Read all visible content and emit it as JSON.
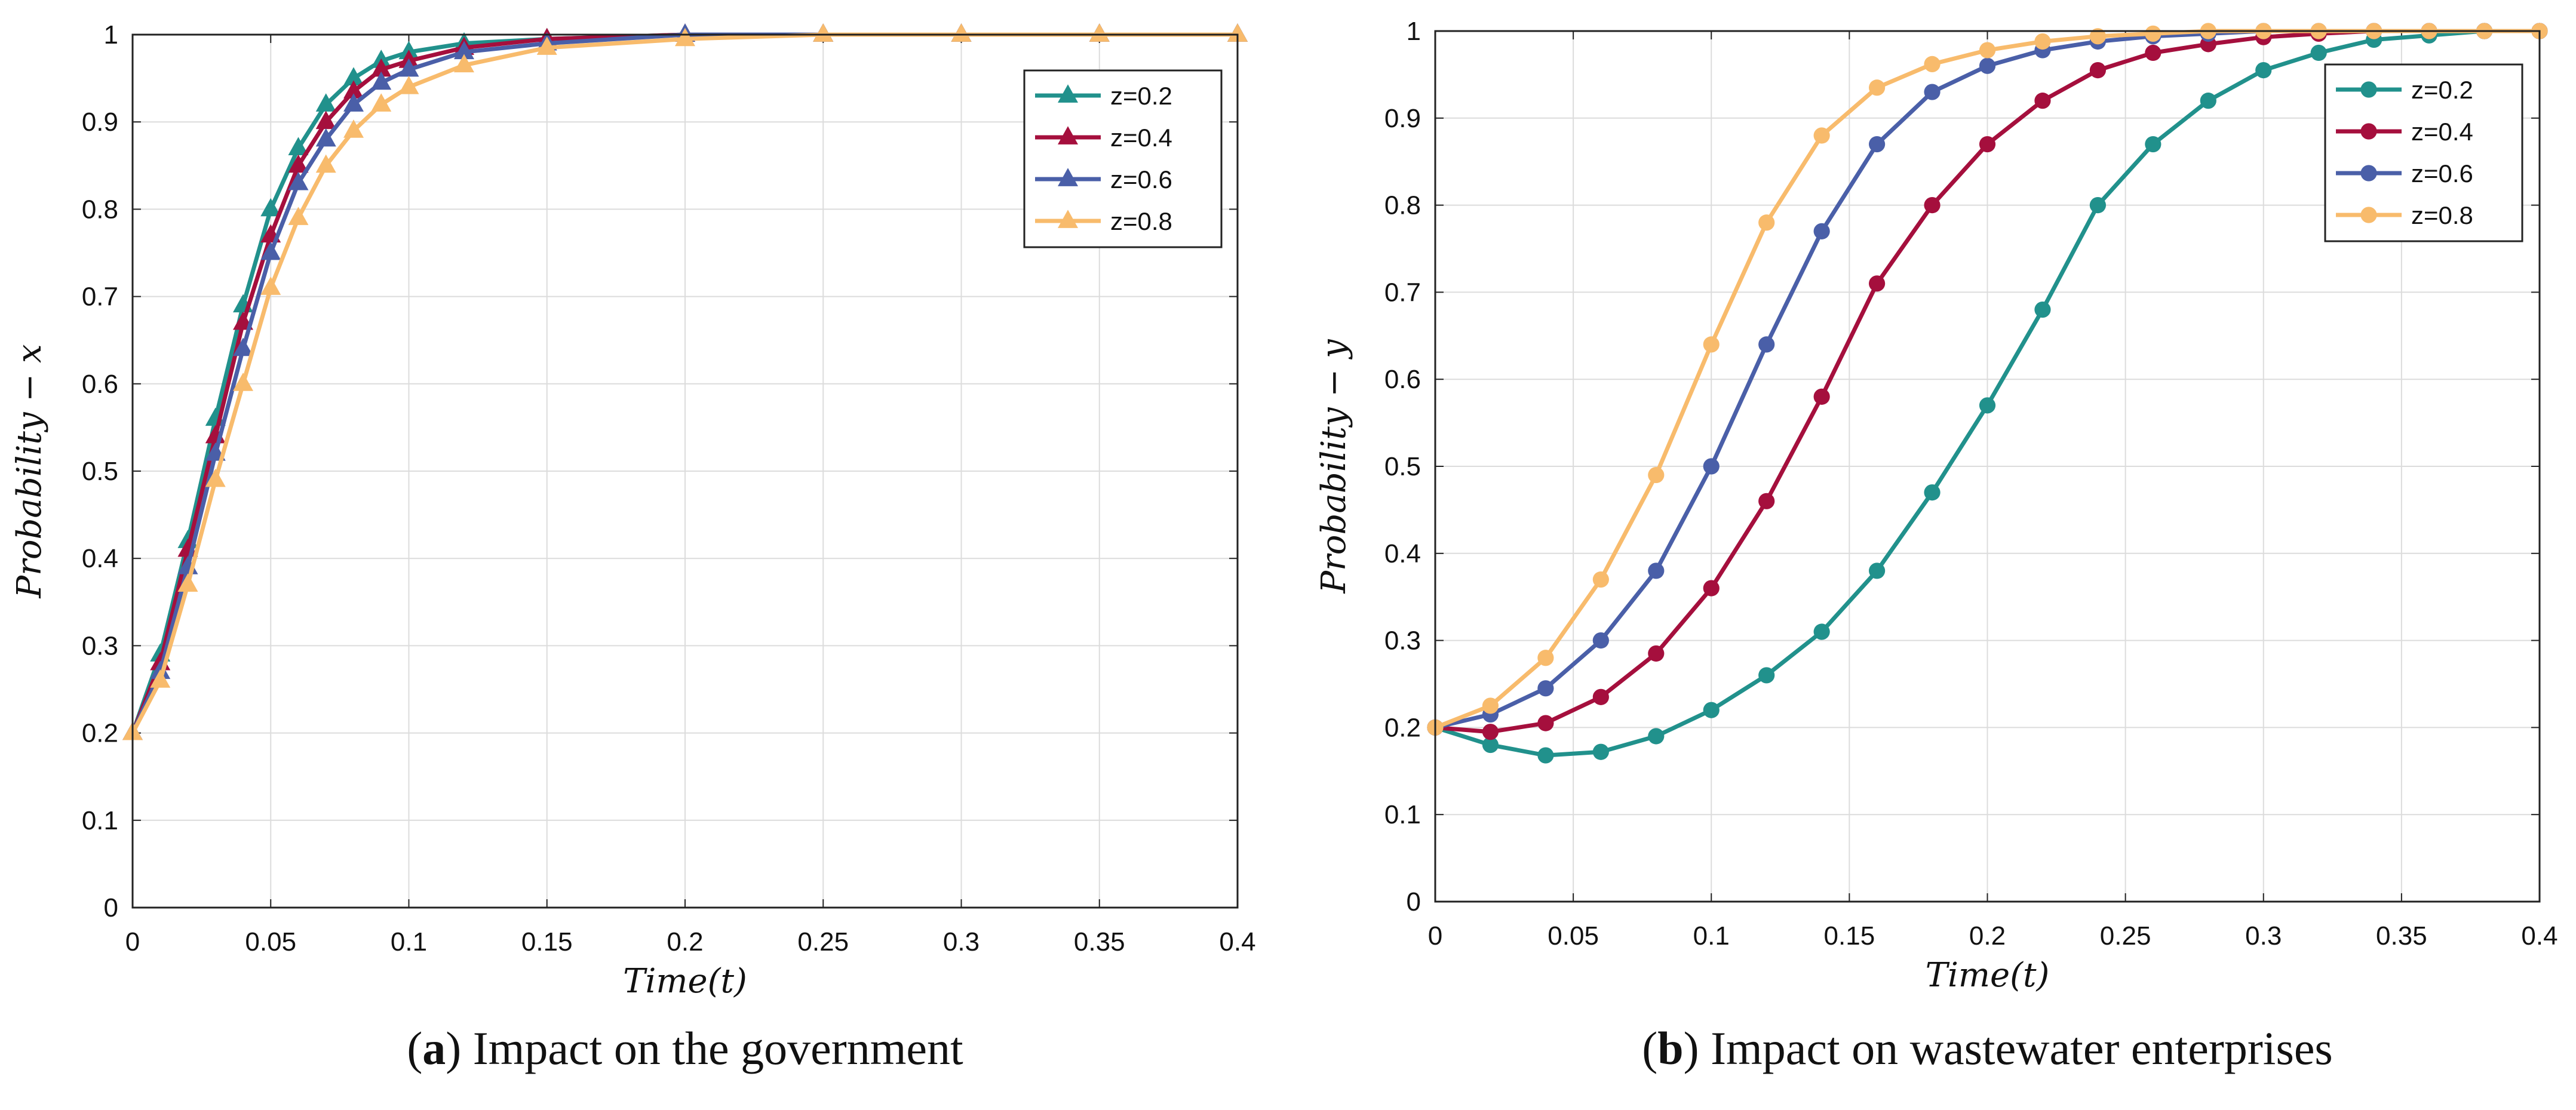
{
  "chart_data": [
    {
      "type": "line",
      "caption": {
        "tag": "a",
        "text": "Impact on the government"
      },
      "xlabel": "Time(t)",
      "ylabel": "Probability − x",
      "xlim": [
        0,
        0.4
      ],
      "ylim": [
        0,
        1
      ],
      "grid": true,
      "legend_position": "top-right",
      "marker": "triangle",
      "x_ticks": [
        0,
        0.05,
        0.1,
        0.15,
        0.2,
        0.25,
        0.3,
        0.35,
        0.4
      ],
      "x_tick_labels": [
        "0",
        "0.05",
        "0.1",
        "0.15",
        "0.2",
        "0.25",
        "0.3",
        "0.35",
        "0.4"
      ],
      "y_ticks": [
        0,
        0.1,
        0.2,
        0.3,
        0.4,
        0.5,
        0.6,
        0.7,
        0.8,
        0.9,
        1
      ],
      "y_tick_labels": [
        "0",
        "0.1",
        "0.2",
        "0.3",
        "0.4",
        "0.5",
        "0.6",
        "0.7",
        "0.8",
        "0.9",
        "1"
      ],
      "series": [
        {
          "name": "z=0.2",
          "color": "#21918c",
          "x": [
            0,
            0.01,
            0.02,
            0.03,
            0.04,
            0.05,
            0.06,
            0.07,
            0.08,
            0.09,
            0.1,
            0.12,
            0.15,
            0.2,
            0.25,
            0.3,
            0.35,
            0.4
          ],
          "y": [
            0.2,
            0.29,
            0.42,
            0.56,
            0.69,
            0.8,
            0.87,
            0.92,
            0.95,
            0.97,
            0.98,
            0.99,
            0.995,
            1,
            1,
            1,
            1,
            1
          ]
        },
        {
          "name": "z=0.4",
          "color": "#a50f3d",
          "x": [
            0,
            0.01,
            0.02,
            0.03,
            0.04,
            0.05,
            0.06,
            0.07,
            0.08,
            0.09,
            0.1,
            0.12,
            0.15,
            0.2,
            0.25,
            0.3,
            0.35,
            0.4
          ],
          "y": [
            0.2,
            0.28,
            0.41,
            0.54,
            0.67,
            0.77,
            0.85,
            0.9,
            0.935,
            0.96,
            0.97,
            0.985,
            0.995,
            1,
            1,
            1,
            1,
            1
          ]
        },
        {
          "name": "z=0.6",
          "color": "#4a5fa8",
          "x": [
            0,
            0.01,
            0.02,
            0.03,
            0.04,
            0.05,
            0.06,
            0.07,
            0.08,
            0.09,
            0.1,
            0.12,
            0.15,
            0.2,
            0.25,
            0.3,
            0.35,
            0.4
          ],
          "y": [
            0.2,
            0.27,
            0.39,
            0.52,
            0.64,
            0.75,
            0.83,
            0.88,
            0.92,
            0.945,
            0.96,
            0.98,
            0.99,
            1,
            1,
            1,
            1,
            1
          ]
        },
        {
          "name": "z=0.8",
          "color": "#f8bb6c",
          "x": [
            0,
            0.01,
            0.02,
            0.03,
            0.04,
            0.05,
            0.06,
            0.07,
            0.08,
            0.09,
            0.1,
            0.12,
            0.15,
            0.2,
            0.25,
            0.3,
            0.35,
            0.4
          ],
          "y": [
            0.2,
            0.26,
            0.37,
            0.49,
            0.6,
            0.71,
            0.79,
            0.85,
            0.89,
            0.92,
            0.94,
            0.965,
            0.985,
            0.995,
            1,
            1,
            1,
            1
          ]
        }
      ]
    },
    {
      "type": "line",
      "caption": {
        "tag": "b",
        "text": "Impact on wastewater enterprises"
      },
      "xlabel": "Time(t)",
      "ylabel": "Probability − y",
      "xlim": [
        0,
        0.4
      ],
      "ylim": [
        0,
        1
      ],
      "grid": true,
      "legend_position": "top-right",
      "marker": "circle",
      "x_ticks": [
        0,
        0.05,
        0.1,
        0.15,
        0.2,
        0.25,
        0.3,
        0.35,
        0.4
      ],
      "x_tick_labels": [
        "0",
        "0.05",
        "0.1",
        "0.15",
        "0.2",
        "0.25",
        "0.3",
        "0.35",
        "0.4"
      ],
      "y_ticks": [
        0,
        0.1,
        0.2,
        0.3,
        0.4,
        0.5,
        0.6,
        0.7,
        0.8,
        0.9,
        1
      ],
      "y_tick_labels": [
        "0",
        "0.1",
        "0.2",
        "0.3",
        "0.4",
        "0.5",
        "0.6",
        "0.7",
        "0.8",
        "0.9",
        "1"
      ],
      "series": [
        {
          "name": "z=0.2",
          "color": "#21918c",
          "x": [
            0,
            0.02,
            0.04,
            0.06,
            0.08,
            0.1,
            0.12,
            0.14,
            0.16,
            0.18,
            0.2,
            0.22,
            0.24,
            0.26,
            0.28,
            0.3,
            0.32,
            0.34,
            0.36,
            0.38,
            0.4
          ],
          "y": [
            0.2,
            0.18,
            0.168,
            0.172,
            0.19,
            0.22,
            0.26,
            0.31,
            0.38,
            0.47,
            0.57,
            0.68,
            0.8,
            0.87,
            0.92,
            0.955,
            0.975,
            0.99,
            0.995,
            1,
            1
          ]
        },
        {
          "name": "z=0.4",
          "color": "#a50f3d",
          "x": [
            0,
            0.02,
            0.04,
            0.06,
            0.08,
            0.1,
            0.12,
            0.14,
            0.16,
            0.18,
            0.2,
            0.22,
            0.24,
            0.26,
            0.28,
            0.3,
            0.32,
            0.34,
            0.36,
            0.38,
            0.4
          ],
          "y": [
            0.2,
            0.195,
            0.205,
            0.235,
            0.285,
            0.36,
            0.46,
            0.58,
            0.71,
            0.8,
            0.87,
            0.92,
            0.955,
            0.975,
            0.985,
            0.993,
            0.997,
            1,
            1,
            1,
            1
          ]
        },
        {
          "name": "z=0.6",
          "color": "#4a5fa8",
          "x": [
            0,
            0.02,
            0.04,
            0.06,
            0.08,
            0.1,
            0.12,
            0.14,
            0.16,
            0.18,
            0.2,
            0.22,
            0.24,
            0.26,
            0.28,
            0.3,
            0.32,
            0.34,
            0.36,
            0.38,
            0.4
          ],
          "y": [
            0.2,
            0.215,
            0.245,
            0.3,
            0.38,
            0.5,
            0.64,
            0.77,
            0.87,
            0.93,
            0.96,
            0.978,
            0.988,
            0.994,
            0.997,
            1,
            1,
            1,
            1,
            1,
            1
          ]
        },
        {
          "name": "z=0.8",
          "color": "#f8bb6c",
          "x": [
            0,
            0.02,
            0.04,
            0.06,
            0.08,
            0.1,
            0.12,
            0.14,
            0.16,
            0.18,
            0.2,
            0.22,
            0.24,
            0.26,
            0.28,
            0.3,
            0.32,
            0.34,
            0.36,
            0.38,
            0.4
          ],
          "y": [
            0.2,
            0.225,
            0.28,
            0.37,
            0.49,
            0.64,
            0.78,
            0.88,
            0.935,
            0.962,
            0.978,
            0.988,
            0.994,
            0.997,
            1,
            1,
            1,
            1,
            1,
            1,
            1
          ]
        }
      ]
    }
  ]
}
